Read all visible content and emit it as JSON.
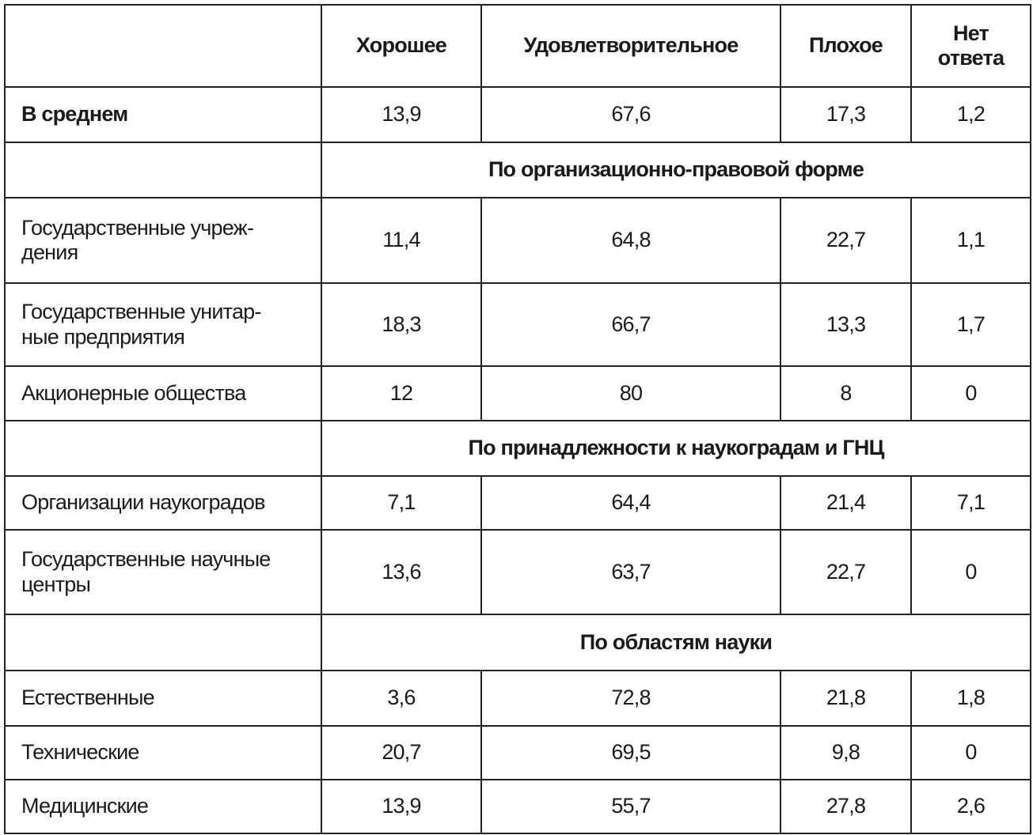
{
  "table": {
    "columns": [
      "Хорошее",
      "Удовлетворительное",
      "Плохое",
      "Нет\nответа"
    ],
    "rows": [
      {
        "label": "В среднем",
        "bold": true,
        "values": [
          "13,9",
          "67,6",
          "17,3",
          "1,2"
        ]
      },
      {
        "section": "По организационно-правовой форме"
      },
      {
        "label": "Государственные учреж-\nдения",
        "values": [
          "11,4",
          "64,8",
          "22,7",
          "1,1"
        ]
      },
      {
        "label": "Государственные унитар-\nные предприятия",
        "values": [
          "18,3",
          "66,7",
          "13,3",
          "1,7"
        ]
      },
      {
        "label": "Акционерные общества",
        "values": [
          "12",
          "80",
          "8",
          "0"
        ]
      },
      {
        "section": "По принадлежности к наукоградам и ГНЦ"
      },
      {
        "label": "Организации наукоградов",
        "values": [
          "7,1",
          "64,4",
          "21,4",
          "7,1"
        ]
      },
      {
        "label": "Государственные научные\nцентры",
        "values": [
          "13,6",
          "63,7",
          "22,7",
          "0"
        ]
      },
      {
        "section": "По областям науки"
      },
      {
        "label": "Естественные",
        "values": [
          "3,6",
          "72,8",
          "21,8",
          "1,8"
        ]
      },
      {
        "label": "Технические",
        "values": [
          "20,7",
          "69,5",
          "9,8",
          "0"
        ]
      },
      {
        "label": "Медицинские",
        "values": [
          "13,9",
          "55,7",
          "27,8",
          "2,6"
        ]
      }
    ]
  }
}
